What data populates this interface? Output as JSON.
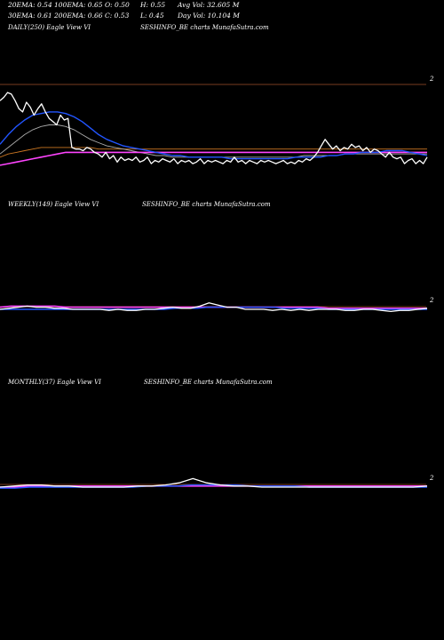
{
  "info": {
    "ema20": "20EMA: 0.54",
    "ema100": "100EMA: 0.65",
    "open": "O: 0.50",
    "high": "H: 0.55",
    "avg_vol": "Avg Vol: 32.605  M",
    "ema30": "30EMA: 0.61",
    "ema200": "200EMA: 0.66",
    "close": "C: 0.53",
    "low": "L: 0.45",
    "day_vol": "Day Vol: 10.104  M"
  },
  "panels": [
    {
      "label": "DAILY(250) Eagle  View  VI",
      "site": "SESHINFO_BE charts MunafaSutra.com",
      "axis": "2"
    },
    {
      "label": "WEEKLY(149) Eagle  View  VI",
      "site": "SESHINFO_BE charts MunafaSutra.com",
      "axis": "2"
    },
    {
      "label": "MONTHLY(37) Eagle  View  VI",
      "site": "SESHINFO_BE charts MunafaSutra.com",
      "axis": "2"
    }
  ],
  "colors": {
    "background": "#000000",
    "price": "#ffffff",
    "ema_blue": "#2255ff",
    "ema_pink": "#ff44ff",
    "ema_orange": "#cc7722",
    "ema_gray": "#aaaaaa",
    "divider": "#a0522d"
  },
  "chart_data": {
    "type": "line",
    "panels": [
      {
        "name": "DAILY(250)",
        "price": [
          0.95,
          0.97,
          1.0,
          0.99,
          0.95,
          0.9,
          0.88,
          0.94,
          0.91,
          0.86,
          0.9,
          0.93,
          0.88,
          0.84,
          0.82,
          0.8,
          0.86,
          0.83,
          0.84,
          0.66,
          0.65,
          0.65,
          0.64,
          0.66,
          0.65,
          0.63,
          0.62,
          0.6,
          0.63,
          0.59,
          0.61,
          0.57,
          0.6,
          0.58,
          0.59,
          0.58,
          0.6,
          0.57,
          0.58,
          0.6,
          0.56,
          0.58,
          0.57,
          0.59,
          0.58,
          0.57,
          0.59,
          0.56,
          0.58,
          0.57,
          0.58,
          0.56,
          0.57,
          0.59,
          0.56,
          0.58,
          0.57,
          0.58,
          0.57,
          0.56,
          0.58,
          0.57,
          0.6,
          0.57,
          0.58,
          0.56,
          0.58,
          0.57,
          0.56,
          0.58,
          0.57,
          0.58,
          0.57,
          0.56,
          0.57,
          0.58,
          0.56,
          0.57,
          0.56,
          0.58,
          0.57,
          0.59,
          0.58,
          0.6,
          0.63,
          0.67,
          0.71,
          0.68,
          0.65,
          0.67,
          0.64,
          0.66,
          0.65,
          0.68,
          0.66,
          0.67,
          0.64,
          0.66,
          0.63,
          0.65,
          0.64,
          0.62,
          0.6,
          0.63,
          0.6,
          0.59,
          0.6,
          0.56,
          0.58,
          0.59,
          0.56,
          0.58,
          0.56,
          0.6
        ],
        "ema_blue": [
          0.68,
          0.74,
          0.79,
          0.83,
          0.86,
          0.87,
          0.88,
          0.88,
          0.87,
          0.85,
          0.82,
          0.78,
          0.74,
          0.71,
          0.69,
          0.67,
          0.66,
          0.65,
          0.64,
          0.63,
          0.62,
          0.61,
          0.61,
          0.6,
          0.6,
          0.6,
          0.6,
          0.6,
          0.59,
          0.59,
          0.59,
          0.59,
          0.59,
          0.59,
          0.59,
          0.59,
          0.6,
          0.6,
          0.6,
          0.6,
          0.61,
          0.61,
          0.62,
          0.62,
          0.63,
          0.63,
          0.63,
          0.64,
          0.64,
          0.64,
          0.63,
          0.62,
          0.61
        ],
        "ema_pink": [
          0.55,
          0.56,
          0.57,
          0.58,
          0.59,
          0.6,
          0.61,
          0.62,
          0.63,
          0.63,
          0.63,
          0.63,
          0.63,
          0.63,
          0.63,
          0.63,
          0.63,
          0.63,
          0.63,
          0.63,
          0.63,
          0.63,
          0.63,
          0.63,
          0.63,
          0.63,
          0.63,
          0.63,
          0.63,
          0.63,
          0.63,
          0.63,
          0.63,
          0.63,
          0.63,
          0.63,
          0.63,
          0.63,
          0.63,
          0.63,
          0.63,
          0.63,
          0.63,
          0.63,
          0.63,
          0.63,
          0.63,
          0.63,
          0.63,
          0.63,
          0.63,
          0.63,
          0.63
        ],
        "ema_orange": [
          0.6,
          0.62,
          0.63,
          0.64,
          0.65,
          0.66,
          0.66,
          0.66,
          0.66,
          0.66,
          0.66,
          0.66,
          0.65,
          0.65,
          0.65,
          0.65,
          0.65,
          0.65,
          0.65,
          0.65,
          0.65,
          0.65,
          0.65,
          0.65,
          0.65,
          0.65,
          0.65,
          0.65,
          0.65,
          0.65,
          0.65,
          0.65,
          0.65,
          0.65,
          0.65,
          0.65,
          0.65,
          0.65,
          0.65,
          0.65,
          0.65,
          0.65,
          0.65,
          0.65,
          0.65,
          0.65,
          0.65,
          0.65,
          0.65,
          0.65,
          0.65,
          0.65,
          0.65
        ],
        "ema_gray": [
          0.62,
          0.66,
          0.7,
          0.74,
          0.77,
          0.79,
          0.8,
          0.8,
          0.79,
          0.77,
          0.74,
          0.71,
          0.69,
          0.67,
          0.66,
          0.65,
          0.64,
          0.63,
          0.62,
          0.61,
          0.61,
          0.6,
          0.6,
          0.6,
          0.6,
          0.6,
          0.6,
          0.6,
          0.6,
          0.6,
          0.6,
          0.6,
          0.6,
          0.6,
          0.6,
          0.6,
          0.6,
          0.61,
          0.61,
          0.61,
          0.61,
          0.61,
          0.62,
          0.62,
          0.62,
          0.62,
          0.62,
          0.62,
          0.62,
          0.62,
          0.62,
          0.62,
          0.62
        ]
      },
      {
        "name": "WEEKLY(149)",
        "price": [
          0.6,
          0.61,
          0.62,
          0.63,
          0.62,
          0.62,
          0.61,
          0.61,
          0.6,
          0.6,
          0.6,
          0.6,
          0.59,
          0.6,
          0.59,
          0.59,
          0.6,
          0.6,
          0.61,
          0.62,
          0.61,
          0.61,
          0.63,
          0.66,
          0.64,
          0.62,
          0.62,
          0.6,
          0.6,
          0.6,
          0.59,
          0.6,
          0.59,
          0.6,
          0.59,
          0.6,
          0.6,
          0.6,
          0.59,
          0.59,
          0.6,
          0.6,
          0.59,
          0.58,
          0.59,
          0.59,
          0.6,
          0.61
        ],
        "ema_blue": [
          0.6,
          0.6,
          0.6,
          0.6,
          0.6,
          0.6,
          0.6,
          0.6,
          0.6,
          0.6,
          0.6,
          0.6,
          0.6,
          0.6,
          0.6,
          0.6,
          0.61,
          0.61,
          0.61,
          0.62,
          0.62,
          0.62,
          0.62,
          0.62,
          0.62,
          0.62,
          0.61,
          0.61,
          0.61,
          0.61,
          0.6,
          0.6,
          0.6,
          0.6,
          0.6,
          0.6,
          0.6,
          0.6,
          0.6,
          0.6
        ],
        "ema_pink": [
          0.62,
          0.63,
          0.63,
          0.63,
          0.63,
          0.63,
          0.62,
          0.62,
          0.62,
          0.62,
          0.62,
          0.62,
          0.62,
          0.62,
          0.62,
          0.62,
          0.62,
          0.62,
          0.62,
          0.62,
          0.62,
          0.62,
          0.62,
          0.62,
          0.62,
          0.62,
          0.62,
          0.62,
          0.62,
          0.62,
          0.61,
          0.61,
          0.61,
          0.61,
          0.61,
          0.61,
          0.61,
          0.61,
          0.61,
          0.61
        ]
      },
      {
        "name": "MONTHLY(37)",
        "price": [
          0.6,
          0.61,
          0.62,
          0.62,
          0.61,
          0.61,
          0.6,
          0.6,
          0.6,
          0.6,
          0.61,
          0.61,
          0.62,
          0.64,
          0.68,
          0.64,
          0.62,
          0.61,
          0.61,
          0.6,
          0.6,
          0.6,
          0.6,
          0.6,
          0.6,
          0.6,
          0.6,
          0.6,
          0.6,
          0.6,
          0.6,
          0.61
        ],
        "ema_blue": [
          0.59,
          0.59,
          0.6,
          0.6,
          0.6,
          0.6,
          0.6,
          0.6,
          0.6,
          0.6,
          0.61,
          0.61,
          0.61,
          0.62,
          0.62,
          0.62,
          0.62,
          0.61,
          0.61,
          0.61,
          0.61,
          0.6,
          0.6,
          0.6,
          0.6,
          0.6,
          0.6,
          0.6,
          0.6,
          0.6
        ],
        "ema_pink": [
          0.6,
          0.6,
          0.61,
          0.61,
          0.61,
          0.61,
          0.61,
          0.61,
          0.61,
          0.61,
          0.61,
          0.61,
          0.61,
          0.61,
          0.61,
          0.61,
          0.61,
          0.61,
          0.61,
          0.61,
          0.61,
          0.61,
          0.61,
          0.61,
          0.61,
          0.61,
          0.61,
          0.61,
          0.61,
          0.61
        ]
      }
    ]
  }
}
